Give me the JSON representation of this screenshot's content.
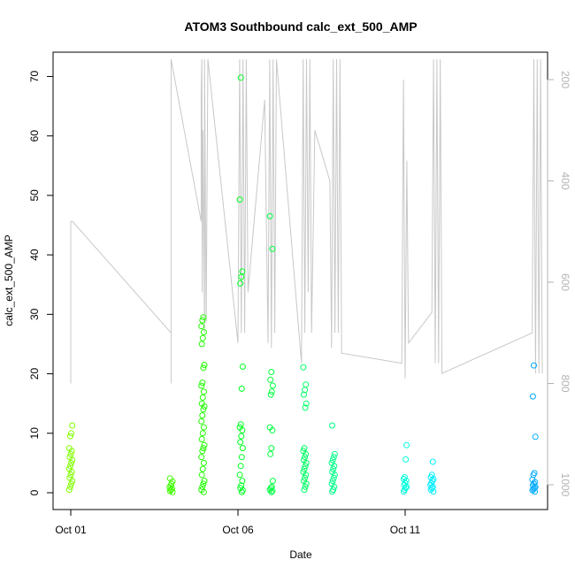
{
  "chart_data": {
    "type": "scatter",
    "title": "ATOM3 Southbound calc_ext_500_AMP",
    "xlabel": "Date",
    "ylabel": "calc_ext_500_AMP",
    "x_ticks": [
      {
        "label": "Oct 01",
        "day": 1
      },
      {
        "label": "Oct 06",
        "day": 6
      },
      {
        "label": "Oct 11",
        "day": 11
      }
    ],
    "xlim_day": [
      1,
      15.1
    ],
    "ylim": [
      0,
      72
    ],
    "y_ticks": [
      0,
      10,
      20,
      30,
      40,
      50,
      60,
      70
    ],
    "y2_ticks": [
      200,
      400,
      600,
      800,
      1000
    ],
    "y2lim": [
      1020,
      160
    ],
    "grid": false,
    "series": [
      {
        "day": 1.0,
        "color": "#80ff00",
        "values": [
          0.5,
          1.0,
          1.5,
          2.0,
          2.5,
          3.0,
          3.5,
          4.0,
          4.5,
          5.0,
          5.5,
          6.0,
          6.5,
          7.0,
          7.5,
          9.5,
          10.0,
          11.3
        ]
      },
      {
        "day": 4.0,
        "color": "#40ff00",
        "values": [
          0.1,
          0.3,
          0.5,
          0.7,
          0.9,
          1.2,
          1.5,
          1.9,
          2.4
        ]
      },
      {
        "day": 4.95,
        "color": "#20ff00",
        "values": [
          0.1,
          0.5,
          1.0,
          1.5,
          2.0,
          3.0,
          4.0,
          5.0,
          6.0,
          7.0,
          7.5,
          8.0,
          9.0,
          10.0,
          11.0,
          12.0,
          13.0,
          14.0,
          14.5,
          15.0,
          16.0,
          17.0,
          18.0,
          18.5,
          21.0,
          21.5,
          25.0,
          26.0,
          27.0,
          28.0,
          29.0,
          29.5
        ]
      },
      {
        "day": 6.1,
        "color": "#00ff20",
        "values": [
          0.1,
          0.4,
          0.8,
          1.2,
          2.0,
          3.0,
          4.5,
          6.0,
          7.5,
          8.5,
          9.5,
          10.5,
          11.0,
          11.5,
          17.5,
          21.2,
          35.2,
          36.3,
          37.2,
          49.3,
          69.8
        ]
      },
      {
        "day": 7.0,
        "color": "#00ff40",
        "values": [
          0.1,
          0.3,
          0.5,
          0.8,
          1.0,
          2.0,
          6.5,
          7.5,
          10.5,
          11.0,
          16.5,
          17.0,
          18.0,
          19.0,
          20.3,
          41.0,
          46.5
        ]
      },
      {
        "day": 8.0,
        "color": "#00ff66",
        "values": [
          0.5,
          1.0,
          1.5,
          2.0,
          2.5,
          3.0,
          3.5,
          4.0,
          4.5,
          5.0,
          5.5,
          6.0,
          6.5,
          7.0,
          7.5,
          14.3,
          15.0,
          16.5,
          17.3,
          18.2,
          21.1
        ]
      },
      {
        "day": 8.85,
        "color": "#00ff88",
        "values": [
          0.2,
          0.5,
          1.0,
          1.5,
          2.0,
          2.5,
          3.0,
          3.5,
          4.0,
          4.5,
          5.0,
          5.5,
          6.0,
          6.5,
          11.3
        ]
      },
      {
        "day": 11.0,
        "color": "#00ffdd",
        "values": [
          0.2,
          0.5,
          0.8,
          1.0,
          1.3,
          1.6,
          2.0,
          2.3,
          2.6,
          5.6,
          8.0
        ]
      },
      {
        "day": 11.8,
        "color": "#00eeff",
        "values": [
          0.2,
          0.5,
          0.8,
          1.0,
          1.3,
          1.6,
          2.0,
          2.3,
          2.6,
          3.0,
          5.2
        ]
      },
      {
        "day": 14.85,
        "color": "#00aaff",
        "values": [
          0.2,
          0.4,
          0.6,
          0.8,
          1.0,
          1.2,
          1.5,
          1.8,
          2.2,
          3.0,
          3.3,
          9.4,
          16.2,
          21.4
        ]
      }
    ],
    "line_series": {
      "name": "",
      "color": "#c8c8c8",
      "points": [
        [
          1.0,
          500
        ],
        [
          1.0,
          720
        ],
        [
          1.0,
          800
        ],
        [
          1.0,
          480
        ],
        [
          1.05,
          480
        ],
        [
          4.0,
          700
        ],
        [
          4.0,
          800
        ],
        [
          4.0,
          520
        ],
        [
          4.0,
          160
        ],
        [
          4.9,
          480
        ],
        [
          4.9,
          230
        ],
        [
          4.92,
          160
        ],
        [
          4.93,
          620
        ],
        [
          4.95,
          300
        ],
        [
          5.0,
          700
        ],
        [
          5.0,
          160
        ],
        [
          5.05,
          680
        ],
        [
          5.1,
          160
        ],
        [
          6.0,
          720
        ],
        [
          6.05,
          160
        ],
        [
          6.1,
          700
        ],
        [
          6.15,
          160
        ],
        [
          6.2,
          700
        ],
        [
          6.25,
          160
        ],
        [
          6.3,
          620
        ],
        [
          6.8,
          240
        ],
        [
          6.9,
          720
        ],
        [
          6.95,
          160
        ],
        [
          7.0,
          730
        ],
        [
          7.05,
          160
        ],
        [
          7.1,
          700
        ],
        [
          7.15,
          160
        ],
        [
          7.9,
          760
        ],
        [
          7.95,
          160
        ],
        [
          8.0,
          700
        ],
        [
          8.05,
          160
        ],
        [
          8.1,
          620
        ],
        [
          8.15,
          160
        ],
        [
          8.2,
          700
        ],
        [
          8.3,
          300
        ],
        [
          8.75,
          400
        ],
        [
          8.8,
          730
        ],
        [
          8.85,
          160
        ],
        [
          8.9,
          700
        ],
        [
          8.95,
          160
        ],
        [
          9.0,
          700
        ],
        [
          9.05,
          160
        ],
        [
          9.1,
          740
        ],
        [
          10.9,
          760
        ],
        [
          10.95,
          200
        ],
        [
          11.0,
          790
        ],
        [
          11.05,
          360
        ],
        [
          11.1,
          720
        ],
        [
          11.8,
          660
        ],
        [
          11.85,
          160
        ],
        [
          11.9,
          760
        ],
        [
          11.95,
          160
        ],
        [
          12.0,
          760
        ],
        [
          12.05,
          160
        ],
        [
          12.1,
          780
        ],
        [
          14.8,
          700
        ],
        [
          14.85,
          160
        ],
        [
          14.9,
          780
        ],
        [
          14.95,
          160
        ],
        [
          15.0,
          780
        ],
        [
          15.05,
          160
        ],
        [
          15.1,
          780
        ]
      ]
    }
  }
}
